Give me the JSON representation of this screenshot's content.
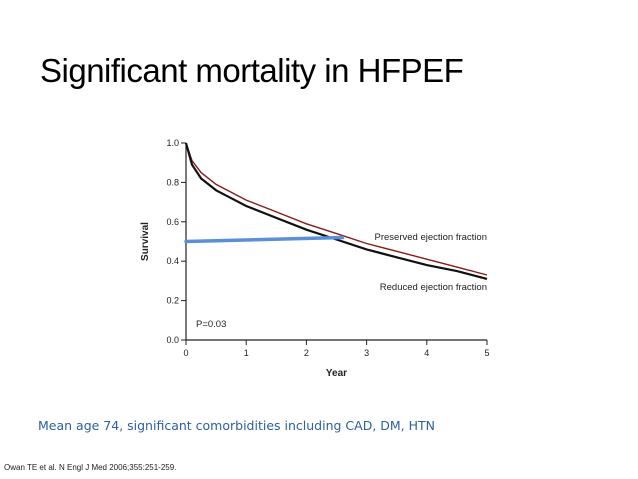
{
  "slide": {
    "title": "Significant mortality in HFPEF",
    "subtitle": "Mean age 74, significant comorbidities including CAD, DM, HTN",
    "citation": "Owan TE et al. N Engl J Med 2006;355:251-259."
  },
  "chart_data": {
    "type": "line",
    "xlabel": "Year",
    "ylabel": "Survival",
    "xlim": [
      0,
      5
    ],
    "ylim": [
      0,
      1.0
    ],
    "x_ticks": [
      "0",
      "1",
      "2",
      "3",
      "4",
      "5"
    ],
    "y_ticks": [
      "0.0",
      "0.2",
      "0.4",
      "0.6",
      "0.8",
      "1.0"
    ],
    "annotation": "P=0.03",
    "grid": false,
    "series": [
      {
        "name": "Preserved ejection fraction",
        "color": "#8b1a1a",
        "x": [
          0,
          0.1,
          0.25,
          0.5,
          0.75,
          1,
          1.5,
          2,
          2.5,
          3,
          3.5,
          4,
          4.5,
          5
        ],
        "y": [
          1.0,
          0.91,
          0.85,
          0.79,
          0.75,
          0.71,
          0.65,
          0.59,
          0.54,
          0.49,
          0.45,
          0.41,
          0.37,
          0.33
        ]
      },
      {
        "name": "Reduced ejection fraction",
        "color": "#111111",
        "x": [
          0,
          0.1,
          0.25,
          0.5,
          0.75,
          1,
          1.5,
          2,
          2.5,
          3,
          3.5,
          4,
          4.5,
          5
        ],
        "y": [
          1.0,
          0.89,
          0.82,
          0.76,
          0.72,
          0.68,
          0.62,
          0.56,
          0.51,
          0.46,
          0.42,
          0.38,
          0.35,
          0.31
        ]
      }
    ],
    "marker_line": {
      "color": "#5b8fd6",
      "x": [
        0,
        2.6
      ],
      "y": [
        0.5,
        0.52
      ]
    }
  }
}
